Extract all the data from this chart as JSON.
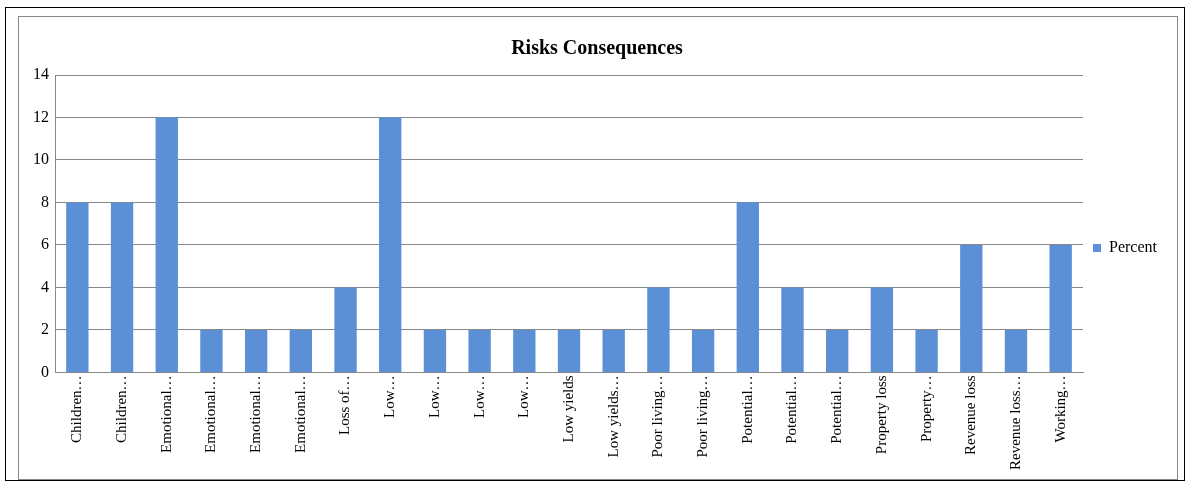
{
  "chart_data": {
    "type": "bar",
    "title": "Risks Consequences",
    "categories": [
      "Children…",
      "Children…",
      "Emotional…",
      "Emotional…",
      "Emotional…",
      "Emotional…",
      "Loss of…",
      "Low…",
      "Low…",
      "Low…",
      "Low…",
      "Low yields",
      "Low yields…",
      "Poor living…",
      "Poor living…",
      "Potential…",
      "Potential…",
      "Potential…",
      "Property loss",
      "Property…",
      "Revenue loss",
      "Revenue loss…",
      "Working…"
    ],
    "series": [
      {
        "name": "Percent",
        "color": "#5b8fd6",
        "values": [
          8,
          8,
          12,
          2,
          2,
          2,
          4,
          12,
          2,
          2,
          2,
          2,
          2,
          4,
          2,
          8,
          4,
          2,
          4,
          2,
          6,
          2,
          6
        ]
      }
    ],
    "ylim": [
      0,
      14
    ],
    "yticks": [
      0,
      2,
      4,
      6,
      8,
      10,
      12,
      14
    ],
    "grid": "y",
    "legend": "right"
  }
}
